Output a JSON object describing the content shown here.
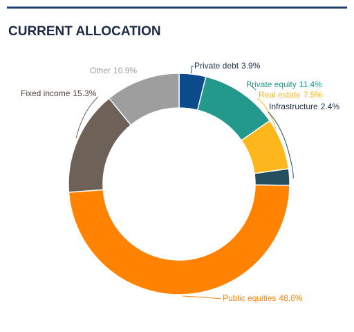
{
  "chart_data": {
    "type": "pie",
    "title": "CURRENT ALLOCATION",
    "categories": [
      "Private debt",
      "Private equity",
      "Real estate",
      "Infrastructure",
      "Public equities",
      "Fixed income",
      "Other"
    ],
    "values": [
      3.9,
      11.4,
      7.5,
      2.4,
      48.6,
      15.3,
      10.9
    ],
    "value_labels": [
      "3.9%",
      "11.4%",
      "7.5%",
      "2.4%",
      "48.6%",
      "15.3%",
      "10.9%"
    ],
    "colors": [
      "#0b4a8b",
      "#22998a",
      "#fdb71c",
      "#234e5e",
      "#ff8300",
      "#6e6158",
      "#9e9e9e"
    ]
  }
}
